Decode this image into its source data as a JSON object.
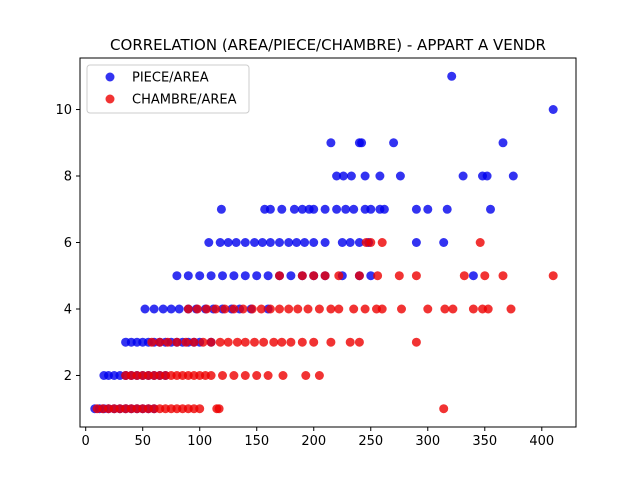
{
  "chart_data": {
    "type": "scatter",
    "title": "CORRELATION (AREA/PIECE/CHAMBRE) - APPART A VENDR",
    "xlabel": "",
    "ylabel": "",
    "xlim": [
      -5,
      430
    ],
    "ylim": [
      0.45,
      11.55
    ],
    "x_ticks": [
      0,
      50,
      100,
      150,
      200,
      250,
      300,
      350,
      400
    ],
    "y_ticks": [
      2,
      4,
      6,
      8,
      10
    ],
    "grid": false,
    "legend_position": "upper-left",
    "series": [
      {
        "name": "PIECE/AREA",
        "color": "#0000ee",
        "points": [
          [
            8,
            1
          ],
          [
            12,
            1
          ],
          [
            16,
            1
          ],
          [
            20,
            1
          ],
          [
            25,
            1
          ],
          [
            30,
            1
          ],
          [
            35,
            1
          ],
          [
            40,
            1
          ],
          [
            45,
            1
          ],
          [
            50,
            1
          ],
          [
            55,
            1
          ],
          [
            60,
            1
          ],
          [
            16,
            2
          ],
          [
            20,
            2
          ],
          [
            25,
            2
          ],
          [
            30,
            2
          ],
          [
            35,
            2
          ],
          [
            40,
            2
          ],
          [
            45,
            2
          ],
          [
            50,
            2
          ],
          [
            55,
            2
          ],
          [
            60,
            2
          ],
          [
            65,
            2
          ],
          [
            70,
            2
          ],
          [
            35,
            3
          ],
          [
            40,
            3
          ],
          [
            45,
            3
          ],
          [
            50,
            3
          ],
          [
            55,
            3
          ],
          [
            60,
            3
          ],
          [
            65,
            3
          ],
          [
            70,
            3
          ],
          [
            75,
            3
          ],
          [
            80,
            3
          ],
          [
            85,
            3
          ],
          [
            90,
            3
          ],
          [
            95,
            3
          ],
          [
            100,
            3
          ],
          [
            110,
            3
          ],
          [
            52,
            4
          ],
          [
            60,
            4
          ],
          [
            68,
            4
          ],
          [
            75,
            4
          ],
          [
            82,
            4
          ],
          [
            90,
            4
          ],
          [
            97,
            4
          ],
          [
            105,
            4
          ],
          [
            112,
            4
          ],
          [
            120,
            4
          ],
          [
            128,
            4
          ],
          [
            135,
            4
          ],
          [
            145,
            4
          ],
          [
            160,
            4
          ],
          [
            80,
            5
          ],
          [
            90,
            5
          ],
          [
            100,
            5
          ],
          [
            110,
            5
          ],
          [
            120,
            5
          ],
          [
            130,
            5
          ],
          [
            140,
            5
          ],
          [
            150,
            5
          ],
          [
            160,
            5
          ],
          [
            170,
            5
          ],
          [
            180,
            5
          ],
          [
            190,
            5
          ],
          [
            200,
            5
          ],
          [
            210,
            5
          ],
          [
            225,
            5
          ],
          [
            240,
            5
          ],
          [
            250,
            5
          ],
          [
            340,
            5
          ],
          [
            108,
            6
          ],
          [
            118,
            6
          ],
          [
            125,
            6
          ],
          [
            132,
            6
          ],
          [
            140,
            6
          ],
          [
            148,
            6
          ],
          [
            155,
            6
          ],
          [
            162,
            6
          ],
          [
            170,
            6
          ],
          [
            178,
            6
          ],
          [
            185,
            6
          ],
          [
            192,
            6
          ],
          [
            200,
            6
          ],
          [
            210,
            6
          ],
          [
            225,
            6
          ],
          [
            232,
            6
          ],
          [
            240,
            6
          ],
          [
            248,
            6
          ],
          [
            290,
            6
          ],
          [
            314,
            6
          ],
          [
            119,
            7
          ],
          [
            157,
            7
          ],
          [
            162,
            7
          ],
          [
            172,
            7
          ],
          [
            183,
            7
          ],
          [
            190,
            7
          ],
          [
            196,
            7
          ],
          [
            200,
            7
          ],
          [
            210,
            7
          ],
          [
            220,
            7
          ],
          [
            228,
            7
          ],
          [
            235,
            7
          ],
          [
            245,
            7
          ],
          [
            250,
            7
          ],
          [
            258,
            7
          ],
          [
            262,
            7
          ],
          [
            290,
            7
          ],
          [
            300,
            7
          ],
          [
            317,
            7
          ],
          [
            355,
            7
          ],
          [
            220,
            8
          ],
          [
            226,
            8
          ],
          [
            233,
            8
          ],
          [
            245,
            8
          ],
          [
            258,
            8
          ],
          [
            276,
            8
          ],
          [
            331,
            8
          ],
          [
            348,
            8
          ],
          [
            352,
            8
          ],
          [
            375,
            8
          ],
          [
            215,
            9
          ],
          [
            240,
            9
          ],
          [
            242,
            9
          ],
          [
            270,
            9
          ],
          [
            366,
            9
          ],
          [
            410,
            10
          ],
          [
            321,
            11
          ]
        ]
      },
      {
        "name": "CHAMBRE/AREA",
        "color": "#ee0000",
        "points": [
          [
            10,
            1
          ],
          [
            15,
            1
          ],
          [
            20,
            1
          ],
          [
            25,
            1
          ],
          [
            30,
            1
          ],
          [
            35,
            1
          ],
          [
            40,
            1
          ],
          [
            45,
            1
          ],
          [
            50,
            1
          ],
          [
            55,
            1
          ],
          [
            60,
            1
          ],
          [
            65,
            1
          ],
          [
            70,
            1
          ],
          [
            75,
            1
          ],
          [
            80,
            1
          ],
          [
            85,
            1
          ],
          [
            90,
            1
          ],
          [
            95,
            1
          ],
          [
            100,
            1
          ],
          [
            115,
            1
          ],
          [
            117,
            1
          ],
          [
            314,
            1
          ],
          [
            35,
            2
          ],
          [
            40,
            2
          ],
          [
            45,
            2
          ],
          [
            50,
            2
          ],
          [
            55,
            2
          ],
          [
            60,
            2
          ],
          [
            65,
            2
          ],
          [
            70,
            2
          ],
          [
            75,
            2
          ],
          [
            80,
            2
          ],
          [
            85,
            2
          ],
          [
            90,
            2
          ],
          [
            95,
            2
          ],
          [
            100,
            2
          ],
          [
            105,
            2
          ],
          [
            110,
            2
          ],
          [
            120,
            2
          ],
          [
            130,
            2
          ],
          [
            140,
            2
          ],
          [
            150,
            2
          ],
          [
            160,
            2
          ],
          [
            173,
            2
          ],
          [
            193,
            2
          ],
          [
            205,
            2
          ],
          [
            58,
            3
          ],
          [
            65,
            3
          ],
          [
            72,
            3
          ],
          [
            80,
            3
          ],
          [
            88,
            3
          ],
          [
            95,
            3
          ],
          [
            103,
            3
          ],
          [
            110,
            3
          ],
          [
            118,
            3
          ],
          [
            125,
            3
          ],
          [
            133,
            3
          ],
          [
            140,
            3
          ],
          [
            148,
            3
          ],
          [
            156,
            3
          ],
          [
            165,
            3
          ],
          [
            172,
            3
          ],
          [
            180,
            3
          ],
          [
            190,
            3
          ],
          [
            200,
            3
          ],
          [
            215,
            3
          ],
          [
            232,
            3
          ],
          [
            240,
            3
          ],
          [
            290,
            3
          ],
          [
            90,
            4
          ],
          [
            98,
            4
          ],
          [
            106,
            4
          ],
          [
            114,
            4
          ],
          [
            122,
            4
          ],
          [
            130,
            4
          ],
          [
            138,
            4
          ],
          [
            146,
            4
          ],
          [
            154,
            4
          ],
          [
            162,
            4
          ],
          [
            170,
            4
          ],
          [
            178,
            4
          ],
          [
            186,
            4
          ],
          [
            195,
            4
          ],
          [
            205,
            4
          ],
          [
            215,
            4
          ],
          [
            222,
            4
          ],
          [
            235,
            4
          ],
          [
            245,
            4
          ],
          [
            255,
            4
          ],
          [
            260,
            4
          ],
          [
            277,
            4
          ],
          [
            300,
            4
          ],
          [
            315,
            4
          ],
          [
            322,
            4
          ],
          [
            340,
            4
          ],
          [
            348,
            4
          ],
          [
            353,
            4
          ],
          [
            373,
            4
          ],
          [
            170,
            5
          ],
          [
            190,
            5
          ],
          [
            200,
            5
          ],
          [
            210,
            5
          ],
          [
            222,
            5
          ],
          [
            240,
            5
          ],
          [
            256,
            5
          ],
          [
            275,
            5
          ],
          [
            290,
            5
          ],
          [
            332,
            5
          ],
          [
            350,
            5
          ],
          [
            366,
            5
          ],
          [
            410,
            5
          ],
          [
            246,
            6
          ],
          [
            250,
            6
          ],
          [
            260,
            6
          ],
          [
            346,
            6
          ]
        ]
      }
    ]
  }
}
